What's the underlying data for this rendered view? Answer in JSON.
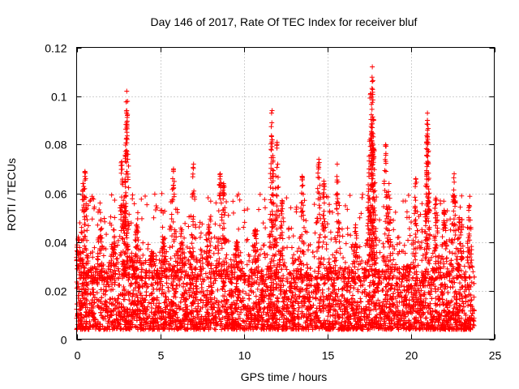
{
  "chart_data": {
    "type": "scatter",
    "title": "Day 146 of 2017, Rate Of TEC Index for receiver bluf",
    "xlabel": "GPS time / hours",
    "ylabel": "ROTI / TECUs",
    "xlim": [
      0,
      25
    ],
    "ylim": [
      0,
      0.12
    ],
    "x_ticks": [
      "0",
      "5",
      "10",
      "15",
      "20",
      "25"
    ],
    "y_ticks": [
      "0",
      "0.02",
      "0.04",
      "0.06",
      "0.08",
      "0.1",
      "0.12"
    ],
    "grid": true,
    "marker": "plus",
    "color": "#ff0000",
    "x_range_of_data": [
      0,
      23.8
    ],
    "dense_band": [
      0.004,
      0.03
    ],
    "peaks": [
      {
        "x": 0.1,
        "y": 0.042
      },
      {
        "x": 0.4,
        "y": 0.064
      },
      {
        "x": 0.5,
        "y": 0.069
      },
      {
        "x": 1.4,
        "y": 0.056
      },
      {
        "x": 2.2,
        "y": 0.045
      },
      {
        "x": 2.7,
        "y": 0.073
      },
      {
        "x": 2.9,
        "y": 0.065
      },
      {
        "x": 3.0,
        "y": 0.102
      },
      {
        "x": 3.0,
        "y": 0.094
      },
      {
        "x": 3.6,
        "y": 0.047
      },
      {
        "x": 4.5,
        "y": 0.036
      },
      {
        "x": 5.2,
        "y": 0.041
      },
      {
        "x": 5.8,
        "y": 0.07
      },
      {
        "x": 6.3,
        "y": 0.045
      },
      {
        "x": 7.0,
        "y": 0.072
      },
      {
        "x": 7.9,
        "y": 0.047
      },
      {
        "x": 8.6,
        "y": 0.068
      },
      {
        "x": 8.8,
        "y": 0.064
      },
      {
        "x": 9.6,
        "y": 0.04
      },
      {
        "x": 10.7,
        "y": 0.045
      },
      {
        "x": 11.7,
        "y": 0.094
      },
      {
        "x": 11.7,
        "y": 0.082
      },
      {
        "x": 12.0,
        "y": 0.081
      },
      {
        "x": 12.3,
        "y": 0.057
      },
      {
        "x": 13.5,
        "y": 0.067
      },
      {
        "x": 14.5,
        "y": 0.074
      },
      {
        "x": 14.8,
        "y": 0.065
      },
      {
        "x": 15.6,
        "y": 0.072
      },
      {
        "x": 16.7,
        "y": 0.047
      },
      {
        "x": 17.5,
        "y": 0.07
      },
      {
        "x": 17.7,
        "y": 0.112
      },
      {
        "x": 17.7,
        "y": 0.106
      },
      {
        "x": 17.6,
        "y": 0.101
      },
      {
        "x": 17.7,
        "y": 0.087
      },
      {
        "x": 17.8,
        "y": 0.078
      },
      {
        "x": 18.5,
        "y": 0.08
      },
      {
        "x": 18.7,
        "y": 0.064
      },
      {
        "x": 20.3,
        "y": 0.066
      },
      {
        "x": 21.0,
        "y": 0.093
      },
      {
        "x": 21.0,
        "y": 0.09
      },
      {
        "x": 21.0,
        "y": 0.086
      },
      {
        "x": 21.5,
        "y": 0.058
      },
      {
        "x": 22.0,
        "y": 0.053
      },
      {
        "x": 22.6,
        "y": 0.068
      },
      {
        "x": 22.9,
        "y": 0.05
      },
      {
        "x": 23.5,
        "y": 0.055
      }
    ]
  }
}
